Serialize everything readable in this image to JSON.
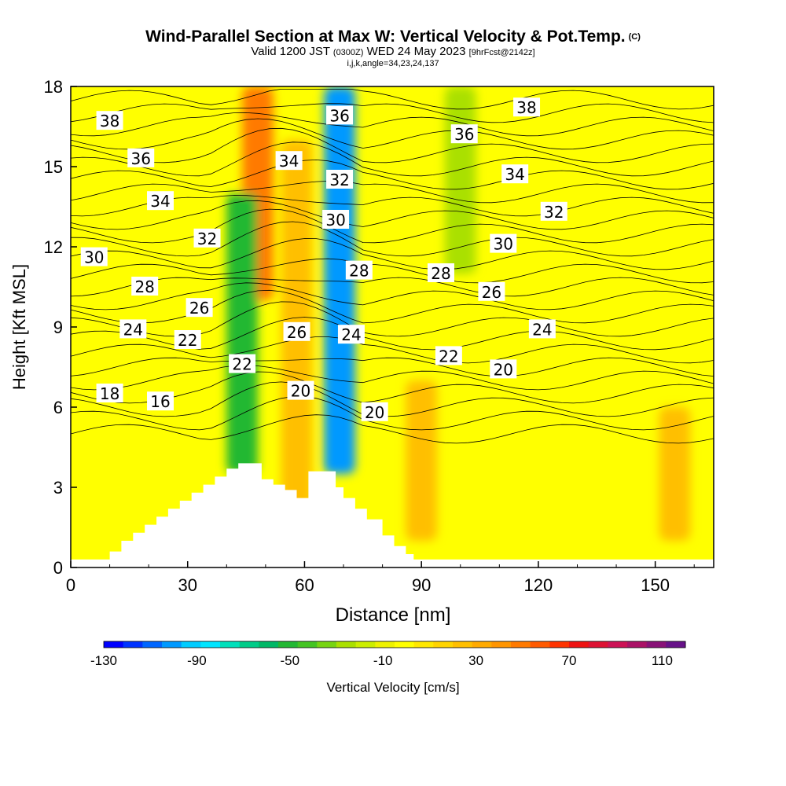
{
  "header": {
    "title_main": "Wind-Parallel Section at Max W: Vertical Velocity & Pot.Temp.",
    "title_tag": "(C)",
    "valid_a": "Valid 1200 JST",
    "valid_utc": "(0300Z)",
    "valid_b": "WED 24 May 2023",
    "fcst": "[9hrFcst@2142z]",
    "indices": "i,j,k,angle=34,23,24,137"
  },
  "colors": {
    "terrain": "#ffffff",
    "contour_line": "#000000",
    "scale": [
      "#0000ff",
      "#0033ff",
      "#0066ff",
      "#0099ff",
      "#00ccff",
      "#00e5ff",
      "#00e0bb",
      "#00cc88",
      "#00b866",
      "#22b833",
      "#44c422",
      "#77d411",
      "#aae000",
      "#ccee00",
      "#eef200",
      "#ffff00",
      "#ffe800",
      "#ffd400",
      "#ffbf00",
      "#ffaa00",
      "#ff9500",
      "#ff7a00",
      "#ff5a00",
      "#ff3300",
      "#ee1111",
      "#dd1133",
      "#cc1155",
      "#aa1166",
      "#881177",
      "#661188"
    ]
  },
  "chart_data": {
    "type": "heatmap",
    "xlabel": "Distance [nm]",
    "ylabel": "Height [Kft MSL]",
    "xlim": [
      0,
      165
    ],
    "ylim": [
      0,
      18
    ],
    "x_ticks": [
      0,
      30,
      60,
      90,
      120,
      150
    ],
    "y_ticks": [
      0,
      3,
      6,
      9,
      12,
      15,
      18
    ],
    "colorbar": {
      "label": "Vertical Velocity [cm/s]",
      "min": -130,
      "max": 120,
      "tick_values": [
        -130,
        -90,
        -50,
        -10,
        30,
        70,
        110
      ]
    },
    "shaded_features": [
      {
        "kind": "updraft",
        "value_cm_s": 50,
        "x_center": 48,
        "y_range": [
          10,
          18
        ]
      },
      {
        "kind": "updraft",
        "value_cm_s": 20,
        "x_center": 58,
        "y_range": [
          0.5,
          16
        ]
      },
      {
        "kind": "updraft",
        "value_cm_s": 20,
        "x_center": 90,
        "y_range": [
          1,
          7
        ]
      },
      {
        "kind": "updraft",
        "value_cm_s": 20,
        "x_center": 155,
        "y_range": [
          1,
          6
        ]
      },
      {
        "kind": "downdraft",
        "value_cm_s": -50,
        "x_center": 44,
        "y_range": [
          3.5,
          14
        ]
      },
      {
        "kind": "downdraft",
        "value_cm_s": -100,
        "x_center": 69,
        "y_range": [
          3.5,
          18
        ]
      },
      {
        "kind": "downdraft",
        "value_cm_s": -30,
        "x_center": 100,
        "y_range": [
          11,
          18
        ]
      }
    ],
    "terrain": {
      "x": [
        0,
        10,
        13,
        16,
        19,
        22,
        25,
        28,
        31,
        34,
        37,
        40,
        43,
        47,
        49,
        52,
        55,
        58,
        61,
        64,
        68,
        70,
        73,
        76,
        80,
        83,
        86,
        88,
        165
      ],
      "y": [
        0.3,
        0.6,
        1.0,
        1.3,
        1.6,
        1.9,
        2.2,
        2.5,
        2.8,
        3.1,
        3.4,
        3.7,
        3.9,
        3.9,
        3.3,
        3.1,
        2.9,
        2.6,
        3.6,
        3.6,
        3.0,
        2.6,
        2.2,
        1.8,
        1.2,
        0.8,
        0.5,
        0.3,
        0.3
      ]
    },
    "theta_contour_labels": [
      {
        "text": "38",
        "x": 10,
        "y": 16.7
      },
      {
        "text": "36",
        "x": 18,
        "y": 15.3
      },
      {
        "text": "34",
        "x": 23,
        "y": 13.7
      },
      {
        "text": "32",
        "x": 35,
        "y": 12.3
      },
      {
        "text": "30",
        "x": 6,
        "y": 11.6
      },
      {
        "text": "28",
        "x": 19,
        "y": 10.5
      },
      {
        "text": "26",
        "x": 33,
        "y": 9.7
      },
      {
        "text": "24",
        "x": 16,
        "y": 8.9
      },
      {
        "text": "22",
        "x": 30,
        "y": 8.5
      },
      {
        "text": "22",
        "x": 44,
        "y": 7.6
      },
      {
        "text": "18",
        "x": 10,
        "y": 6.5
      },
      {
        "text": "16",
        "x": 23,
        "y": 6.2
      },
      {
        "text": "34",
        "x": 56,
        "y": 15.2
      },
      {
        "text": "36",
        "x": 69,
        "y": 16.9
      },
      {
        "text": "32",
        "x": 69,
        "y": 14.5
      },
      {
        "text": "30",
        "x": 68,
        "y": 13.0
      },
      {
        "text": "28",
        "x": 74,
        "y": 11.1
      },
      {
        "text": "26",
        "x": 58,
        "y": 8.8
      },
      {
        "text": "24",
        "x": 72,
        "y": 8.7
      },
      {
        "text": "20",
        "x": 59,
        "y": 6.6
      },
      {
        "text": "20",
        "x": 78,
        "y": 5.8
      },
      {
        "text": "36",
        "x": 101,
        "y": 16.2
      },
      {
        "text": "38",
        "x": 117,
        "y": 17.2
      },
      {
        "text": "34",
        "x": 114,
        "y": 14.7
      },
      {
        "text": "32",
        "x": 124,
        "y": 13.3
      },
      {
        "text": "30",
        "x": 111,
        "y": 12.1
      },
      {
        "text": "28",
        "x": 95,
        "y": 11.0
      },
      {
        "text": "26",
        "x": 108,
        "y": 10.3
      },
      {
        "text": "24",
        "x": 121,
        "y": 8.9
      },
      {
        "text": "22",
        "x": 97,
        "y": 7.9
      },
      {
        "text": "20",
        "x": 111,
        "y": 7.4
      }
    ]
  }
}
